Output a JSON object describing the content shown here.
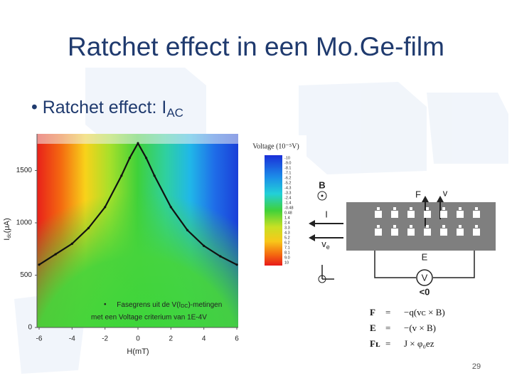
{
  "title": "Ratchet effect in een Mo.Ge-film",
  "bullet": {
    "text": "Ratchet effect: I",
    "subscript": "AC"
  },
  "plot": {
    "xlabel": "H(mT)",
    "ylabel": {
      "main": "I",
      "subscript": "dc",
      "unit": "(μA)"
    },
    "xlim": [
      -6,
      6
    ],
    "ylim": [
      0,
      1850
    ],
    "xticks": [
      -6,
      -4,
      -2,
      0,
      2,
      4,
      6
    ],
    "yticks": [
      0,
      500,
      1000,
      1500
    ],
    "legend": {
      "line1_prefix": "Fasegrens uit de V(I",
      "line1_subscript": "DC",
      "line1_suffix": ")-metingen",
      "line2": "met een Voltage criterium van 1E-4V"
    },
    "phase_boundary": {
      "x": [
        -6,
        -5,
        -4,
        -3,
        -2,
        -1,
        -0.5,
        0,
        0.5,
        1,
        2,
        3,
        4,
        5,
        6
      ],
      "y": [
        600,
        700,
        800,
        950,
        1150,
        1450,
        1620,
        1760,
        1620,
        1450,
        1150,
        930,
        780,
        680,
        600
      ]
    }
  },
  "colorbar": {
    "title": "Voltage (10⁻⁵V)",
    "labels": [
      "-10",
      "-9.0",
      "-8.1",
      "-7.1",
      "-6.2",
      "-5.2",
      "-4.3",
      "-3.3",
      "-2.4",
      "-1.4",
      "-0.48",
      "0.48",
      "1.4",
      "2.4",
      "3.3",
      "4.3",
      "5.2",
      "6.2",
      "7.1",
      "8.1",
      "9.0",
      "10"
    ]
  },
  "diagram": {
    "b_label": "B",
    "f_label": "F",
    "v_label": "v",
    "i_label": "I",
    "ve_label": "v",
    "ve_subscript": "e",
    "e_label": "E",
    "meter_label": "V",
    "meter_sign": "<0"
  },
  "equations": [
    {
      "lhs": "F",
      "rhs": "−q(vᴄ × B)"
    },
    {
      "lhs": "E",
      "rhs": "−(v × B)"
    },
    {
      "lhs": "Fʟ",
      "rhs": "J × φ₀ez"
    }
  ],
  "page_number": "29"
}
